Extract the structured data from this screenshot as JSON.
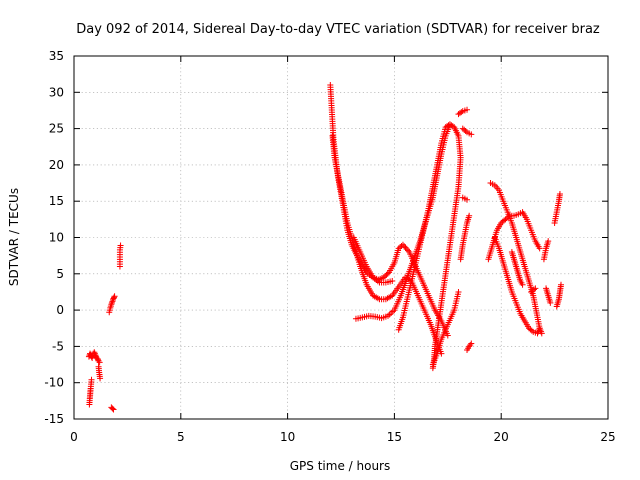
{
  "chart_data": {
    "type": "scatter",
    "title": "Day 092 of 2014, Sidereal Day-to-day VTEC variation (SDTVAR) for receiver braz",
    "xlabel": "GPS time / hours",
    "ylabel": "SDTVAR / TECUs",
    "xlim": [
      0,
      25
    ],
    "ylim": [
      -15,
      35
    ],
    "xticks": [
      0,
      5,
      10,
      15,
      20,
      25
    ],
    "yticks": [
      -15,
      -10,
      -5,
      0,
      5,
      10,
      15,
      20,
      25,
      30,
      35
    ],
    "grid": true,
    "marker": "plus",
    "color": "#ff0000",
    "segments": [
      [
        [
          0.7,
          -6.4
        ],
        [
          0.75,
          -6.0
        ],
        [
          0.8,
          -6.3
        ],
        [
          0.85,
          -6.6
        ],
        [
          0.9,
          -6.0
        ],
        [
          0.95,
          -5.8
        ],
        [
          1.0,
          -6.2
        ],
        [
          1.05,
          -6.5
        ],
        [
          1.1,
          -6.7
        ],
        [
          1.15,
          -7.0
        ],
        [
          1.2,
          -7.2
        ]
      ],
      [
        [
          0.72,
          -13.0
        ],
        [
          0.74,
          -12.2
        ],
        [
          0.76,
          -11.5
        ],
        [
          0.78,
          -10.8
        ],
        [
          0.8,
          -10.2
        ],
        [
          0.82,
          -9.6
        ]
      ],
      [
        [
          1.15,
          -7.8
        ],
        [
          1.18,
          -8.6
        ],
        [
          1.22,
          -9.4
        ]
      ],
      [
        [
          1.75,
          -13.4
        ],
        [
          1.85,
          -13.7
        ]
      ],
      [
        [
          1.65,
          -0.3
        ],
        [
          1.7,
          0.3
        ],
        [
          1.75,
          0.8
        ],
        [
          1.8,
          1.2
        ],
        [
          1.85,
          1.6
        ],
        [
          1.9,
          1.9
        ]
      ],
      [
        [
          2.15,
          6.0
        ],
        [
          2.15,
          8.3
        ],
        [
          2.18,
          8.9
        ]
      ],
      [
        [
          12.0,
          31.0
        ],
        [
          12.05,
          28.5
        ],
        [
          12.1,
          26.0
        ],
        [
          12.15,
          23.5
        ],
        [
          12.25,
          21.0
        ],
        [
          12.35,
          18.5
        ],
        [
          12.5,
          16.0
        ],
        [
          12.65,
          13.5
        ],
        [
          12.8,
          11.0
        ],
        [
          13.0,
          9.0
        ],
        [
          13.25,
          7.5
        ],
        [
          13.5,
          6.2
        ],
        [
          13.75,
          5.0
        ],
        [
          14.0,
          4.5
        ],
        [
          14.25,
          4.2
        ],
        [
          14.5,
          4.5
        ],
        [
          14.75,
          5.2
        ],
        [
          15.0,
          6.5
        ],
        [
          15.2,
          8.5
        ],
        [
          15.4,
          9.0
        ],
        [
          15.7,
          8.0
        ],
        [
          16.0,
          6.0
        ],
        [
          16.3,
          4.0
        ],
        [
          16.6,
          2.0
        ],
        [
          16.9,
          0.0
        ],
        [
          17.2,
          -1.5
        ],
        [
          17.5,
          -3.5
        ]
      ],
      [
        [
          12.1,
          24.0
        ],
        [
          12.2,
          21.0
        ],
        [
          12.4,
          18.0
        ],
        [
          12.6,
          15.0
        ],
        [
          12.8,
          12.0
        ],
        [
          13.1,
          9.0
        ],
        [
          13.4,
          6.0
        ],
        [
          13.7,
          3.5
        ],
        [
          14.0,
          2.0
        ],
        [
          14.3,
          1.5
        ],
        [
          14.6,
          1.5
        ],
        [
          14.9,
          2.0
        ],
        [
          15.2,
          3.2
        ],
        [
          15.5,
          4.5
        ],
        [
          15.8,
          4.0
        ],
        [
          16.1,
          2.0
        ],
        [
          16.4,
          0.0
        ],
        [
          16.7,
          -2.0
        ],
        [
          17.0,
          -4.5
        ],
        [
          17.2,
          -6.0
        ]
      ],
      [
        [
          13.1,
          10.0
        ],
        [
          13.4,
          8.0
        ],
        [
          13.7,
          6.0
        ],
        [
          14.0,
          4.5
        ],
        [
          14.3,
          3.8
        ],
        [
          14.6,
          3.8
        ],
        [
          14.9,
          4.0
        ]
      ],
      [
        [
          13.2,
          -1.2
        ],
        [
          13.5,
          -1.0
        ],
        [
          13.8,
          -0.8
        ],
        [
          14.1,
          -0.9
        ],
        [
          14.4,
          -1.1
        ],
        [
          14.7,
          -0.8
        ],
        [
          15.0,
          0.0
        ],
        [
          15.3,
          2.0
        ],
        [
          15.6,
          4.5
        ],
        [
          15.9,
          7.0
        ],
        [
          16.2,
          9.5
        ],
        [
          16.5,
          12.5
        ],
        [
          16.8,
          15.5
        ],
        [
          17.0,
          18.5
        ],
        [
          17.2,
          21.5
        ],
        [
          17.4,
          24.0
        ],
        [
          17.6,
          25.5
        ]
      ],
      [
        [
          15.2,
          -2.7
        ],
        [
          15.4,
          -1.0
        ],
        [
          15.6,
          1.5
        ],
        [
          15.8,
          4.0
        ],
        [
          16.0,
          6.5
        ],
        [
          16.2,
          9.0
        ],
        [
          16.4,
          11.5
        ],
        [
          16.6,
          14.0
        ],
        [
          16.8,
          17.0
        ],
        [
          17.0,
          20.0
        ],
        [
          17.2,
          23.0
        ],
        [
          17.4,
          25.2
        ],
        [
          17.6,
          25.6
        ],
        [
          17.8,
          25.2
        ],
        [
          18.0,
          24.0
        ],
        [
          18.1,
          21.0
        ],
        [
          18.0,
          17.0
        ],
        [
          17.8,
          13.0
        ],
        [
          17.6,
          9.0
        ],
        [
          17.4,
          5.0
        ],
        [
          17.2,
          1.0
        ],
        [
          17.0,
          -3.0
        ],
        [
          16.9,
          -5.0
        ],
        [
          16.85,
          -7.0
        ],
        [
          16.8,
          -8.0
        ]
      ],
      [
        [
          16.8,
          -7.5
        ],
        [
          17.0,
          -6.0
        ],
        [
          17.2,
          -4.0
        ],
        [
          17.5,
          -2.0
        ],
        [
          17.8,
          0.0
        ],
        [
          18.0,
          2.5
        ]
      ],
      [
        [
          18.0,
          27.0
        ],
        [
          18.2,
          27.4
        ],
        [
          18.4,
          27.6
        ]
      ],
      [
        [
          18.2,
          25.0
        ],
        [
          18.4,
          24.5
        ],
        [
          18.6,
          24.2
        ]
      ],
      [
        [
          18.2,
          15.5
        ],
        [
          18.4,
          15.2
        ]
      ],
      [
        [
          18.1,
          7.0
        ],
        [
          18.2,
          9.0
        ],
        [
          18.3,
          10.5
        ],
        [
          18.4,
          12.0
        ],
        [
          18.5,
          13.0
        ]
      ],
      [
        [
          18.4,
          -5.5
        ],
        [
          18.5,
          -5.0
        ],
        [
          18.6,
          -4.6
        ]
      ],
      [
        [
          19.4,
          7.0
        ],
        [
          19.6,
          9.0
        ],
        [
          19.8,
          11.0
        ],
        [
          20.0,
          12.0
        ],
        [
          20.2,
          12.5
        ],
        [
          20.4,
          13.0
        ],
        [
          20.6,
          13.0
        ],
        [
          20.8,
          13.2
        ],
        [
          21.0,
          13.5
        ],
        [
          21.2,
          12.5
        ],
        [
          21.4,
          11.0
        ],
        [
          21.6,
          9.5
        ],
        [
          21.8,
          8.5
        ]
      ],
      [
        [
          19.5,
          17.5
        ],
        [
          19.7,
          17.2
        ],
        [
          19.9,
          16.5
        ],
        [
          20.1,
          15.0
        ],
        [
          20.3,
          13.5
        ],
        [
          20.5,
          12.0
        ],
        [
          20.7,
          10.0
        ],
        [
          20.9,
          8.0
        ],
        [
          21.1,
          6.0
        ],
        [
          21.3,
          4.0
        ],
        [
          21.5,
          2.0
        ],
        [
          21.6,
          0.5
        ],
        [
          21.7,
          -1.0
        ],
        [
          21.8,
          -2.5
        ],
        [
          21.9,
          -3.2
        ]
      ],
      [
        [
          20.5,
          8.0
        ],
        [
          20.6,
          7.0
        ],
        [
          20.7,
          6.0
        ],
        [
          20.8,
          5.0
        ],
        [
          20.9,
          4.0
        ],
        [
          21.0,
          3.5
        ]
      ],
      [
        [
          19.7,
          10.0
        ],
        [
          19.9,
          8.5
        ],
        [
          20.1,
          6.5
        ],
        [
          20.3,
          4.5
        ],
        [
          20.5,
          2.5
        ],
        [
          20.7,
          1.0
        ],
        [
          20.9,
          -0.5
        ],
        [
          21.1,
          -1.5
        ],
        [
          21.3,
          -2.5
        ],
        [
          21.5,
          -3.0
        ],
        [
          21.7,
          -3.2
        ],
        [
          21.8,
          -2.5
        ]
      ],
      [
        [
          21.4,
          2.5
        ],
        [
          21.6,
          3.0
        ]
      ],
      [
        [
          22.0,
          7.0
        ],
        [
          22.1,
          8.5
        ],
        [
          22.2,
          9.5
        ]
      ],
      [
        [
          22.1,
          3.0
        ],
        [
          22.2,
          2.0
        ],
        [
          22.3,
          1.0
        ]
      ],
      [
        [
          22.6,
          0.5
        ],
        [
          22.7,
          1.5
        ],
        [
          22.75,
          2.5
        ],
        [
          22.8,
          3.5
        ]
      ],
      [
        [
          22.5,
          12.0
        ],
        [
          22.6,
          13.5
        ],
        [
          22.7,
          15.0
        ],
        [
          22.75,
          16.0
        ]
      ]
    ]
  }
}
